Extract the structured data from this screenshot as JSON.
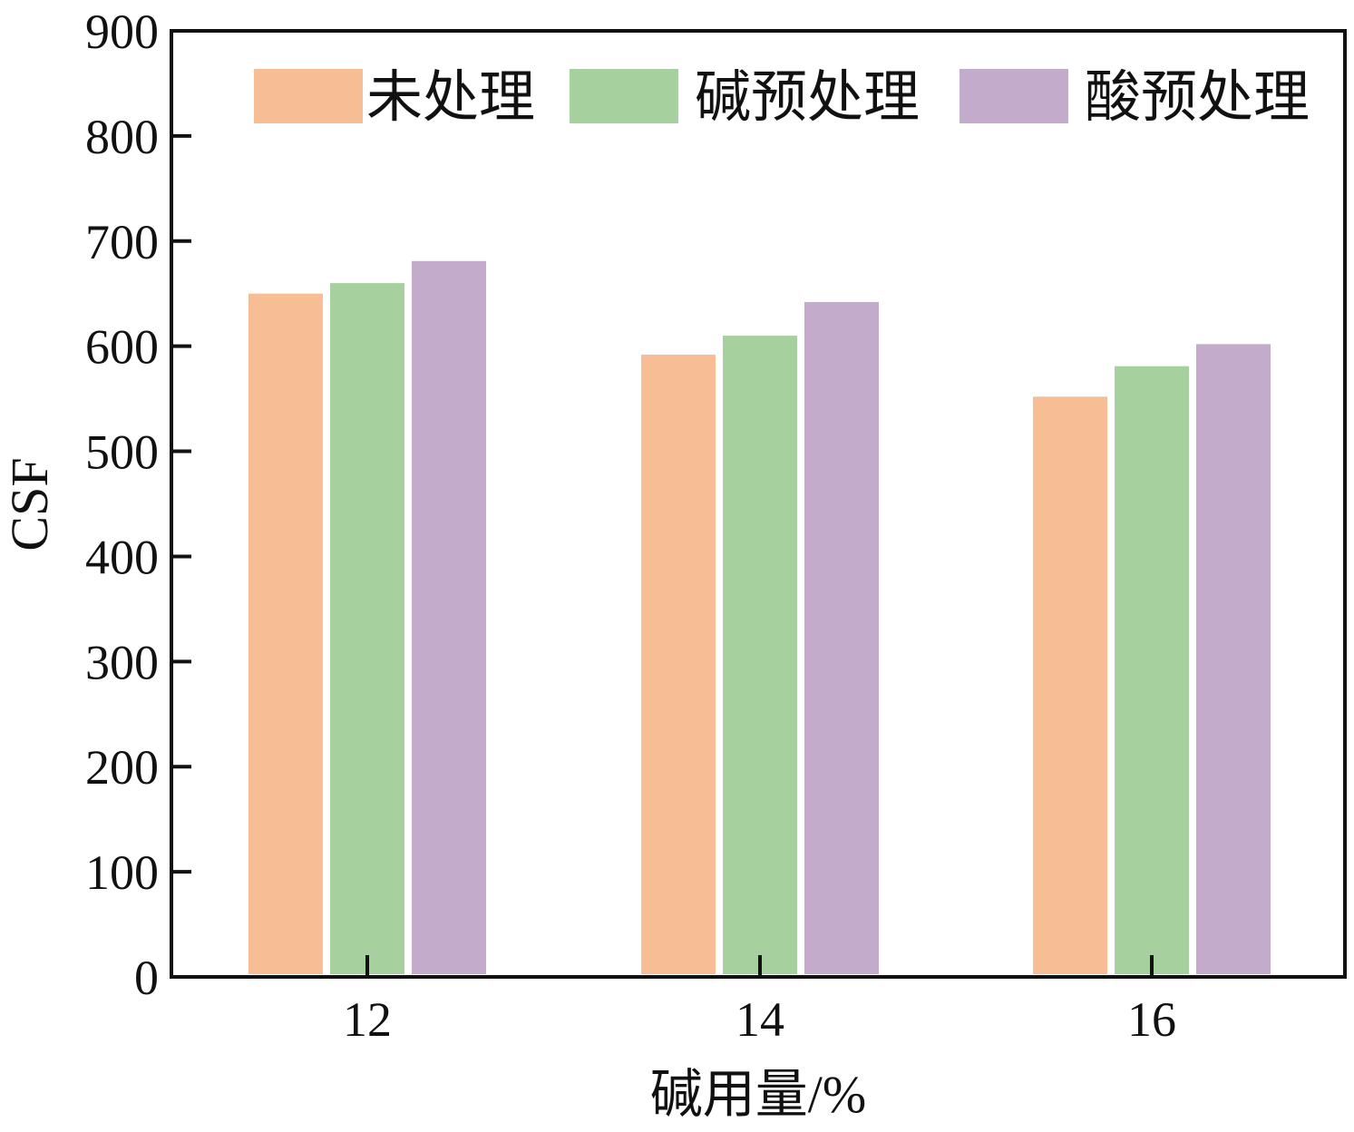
{
  "chart_data": {
    "type": "bar",
    "categories": [
      "12",
      "14",
      "16"
    ],
    "series": [
      {
        "name": "未处理",
        "color": "#F7BD95",
        "values": [
          650,
          592,
          552
        ]
      },
      {
        "name": "碱预处理",
        "color": "#A7D09F",
        "values": [
          660,
          610,
          581
        ]
      },
      {
        "name": "酸预处理",
        "color": "#C3ABCB",
        "values": [
          681,
          642,
          602
        ]
      }
    ],
    "xlabel": "碱用量/%",
    "ylabel": "CSF",
    "ylim": [
      0,
      900
    ],
    "yticks": [
      0,
      100,
      200,
      300,
      400,
      500,
      600,
      700,
      800,
      900
    ],
    "grid": false,
    "legend_position": "top"
  }
}
